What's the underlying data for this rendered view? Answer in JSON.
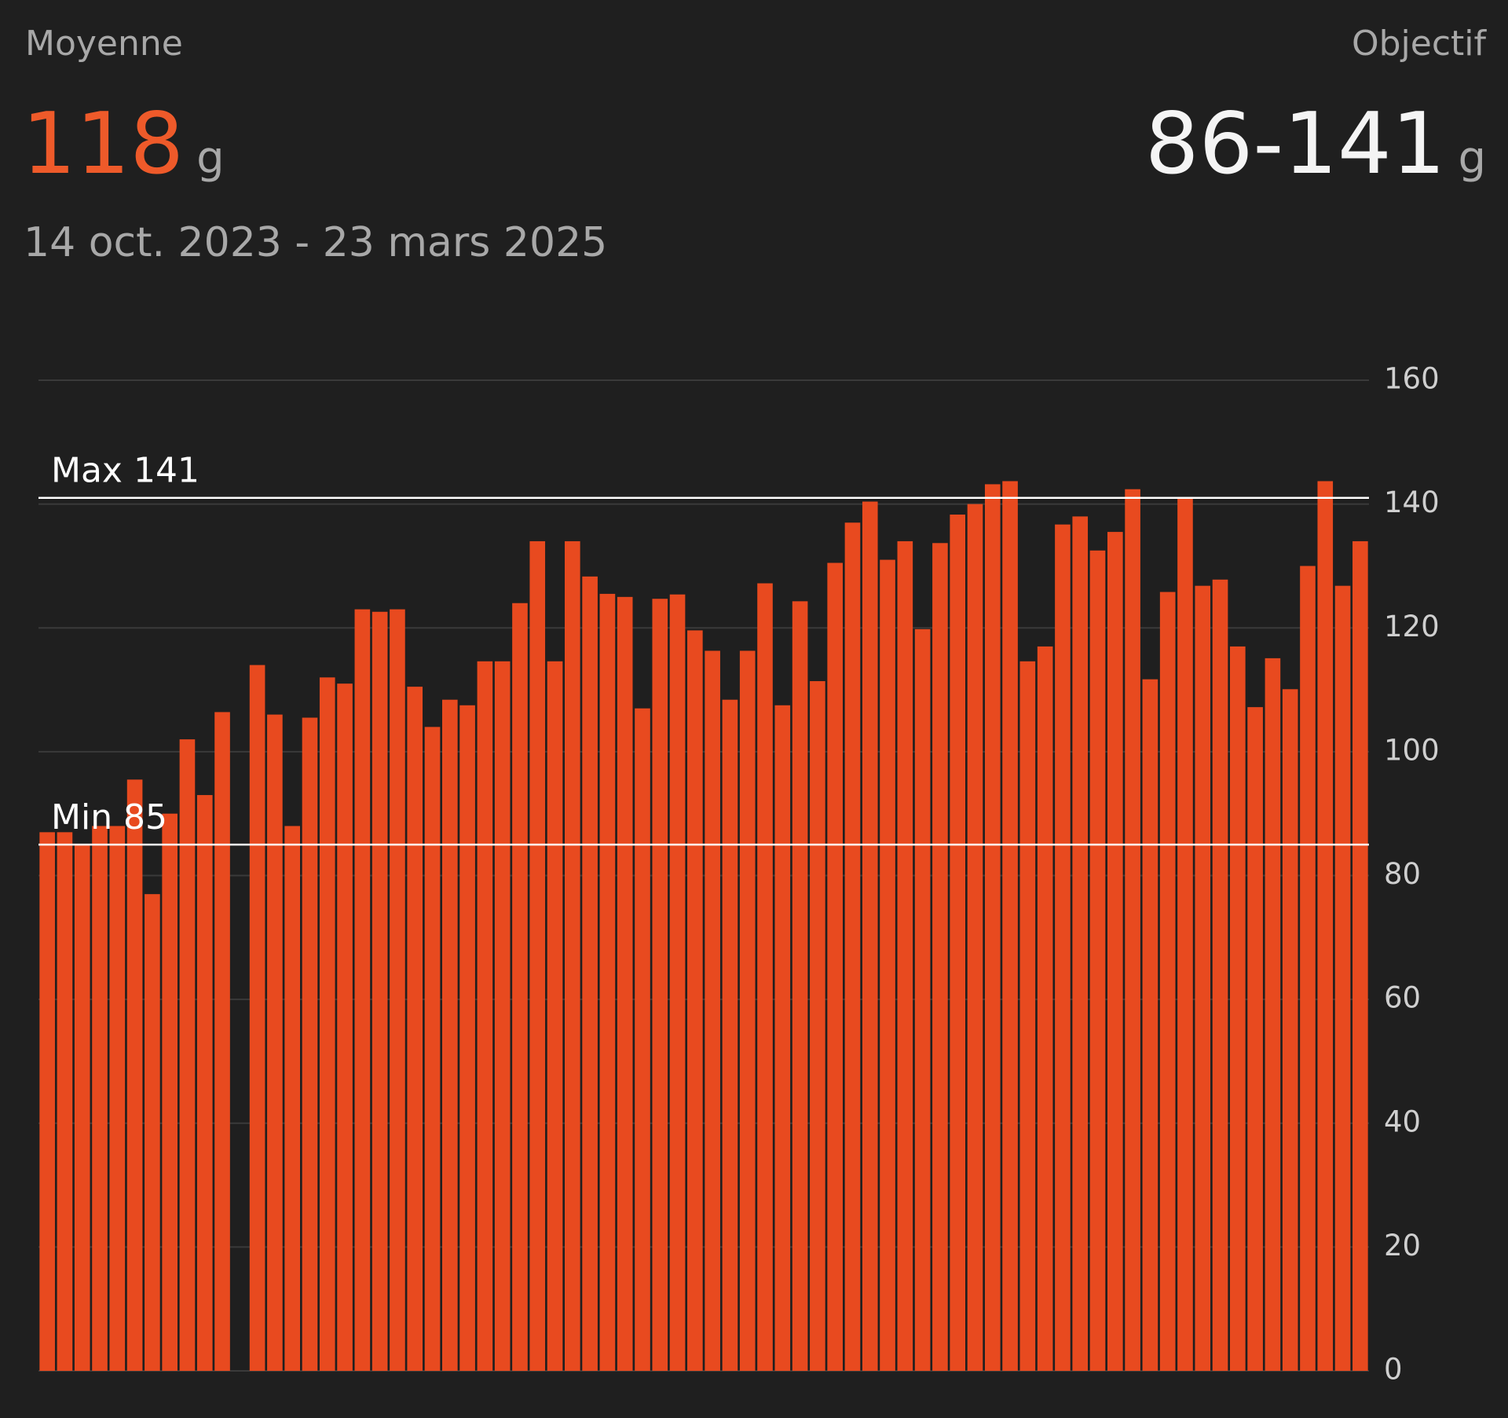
{
  "header": {
    "average_label": "Moyenne",
    "average_value": "118",
    "average_unit": "g",
    "goal_label": "Objectif",
    "goal_value": "86-141",
    "goal_unit": "g",
    "date_range": "14 oct. 2023 - 23 mars 2025"
  },
  "chart_data": {
    "type": "bar",
    "color": "#e84a1f",
    "grid": true,
    "categories": [
      null,
      null,
      null,
      null,
      null,
      null,
      null,
      null,
      null,
      null,
      null,
      null,
      null,
      null,
      null,
      null,
      null,
      null,
      null,
      null,
      null,
      null,
      null,
      null,
      null,
      null,
      null,
      null,
      null,
      null,
      null,
      null,
      null,
      null,
      null,
      null,
      null,
      null,
      null,
      null,
      null,
      null,
      null,
      null,
      null,
      null,
      null,
      null,
      null,
      null,
      null,
      null,
      null,
      null,
      null,
      null,
      null,
      null,
      null,
      null,
      null,
      null,
      null,
      null,
      null,
      null,
      null,
      null,
      null,
      null,
      null,
      null,
      null,
      null,
      null,
      null
    ],
    "values": [
      87,
      87,
      85,
      88,
      88,
      95.5,
      77,
      90,
      102,
      93,
      106.4,
      null,
      114,
      106,
      88,
      105.5,
      112,
      111,
      123,
      122.6,
      123,
      110.5,
      104,
      108.4,
      107.5,
      114.6,
      114.6,
      124,
      134,
      114.6,
      134,
      128.3,
      125.5,
      125,
      107,
      124.7,
      125.4,
      119.6,
      116.3,
      108.4,
      116.3,
      127.2,
      107.5,
      124.3,
      111.4,
      130.5,
      137,
      140.4,
      131,
      134,
      119.8,
      133.7,
      138.3,
      140,
      143.2,
      143.7,
      114.6,
      117,
      136.7,
      138,
      132.5,
      135.5,
      142.4,
      111.7,
      125.8,
      141,
      126.8,
      127.8,
      117,
      107.2,
      115.1,
      110.1,
      130,
      143.7,
      126.8,
      134
    ],
    "ylim": [
      0,
      160
    ],
    "yticks": [
      0,
      20,
      40,
      60,
      80,
      100,
      120,
      140,
      160
    ],
    "reference_lines": [
      {
        "label": "Max 141",
        "value": 141
      },
      {
        "label": "Min 85",
        "value": 85
      }
    ]
  }
}
